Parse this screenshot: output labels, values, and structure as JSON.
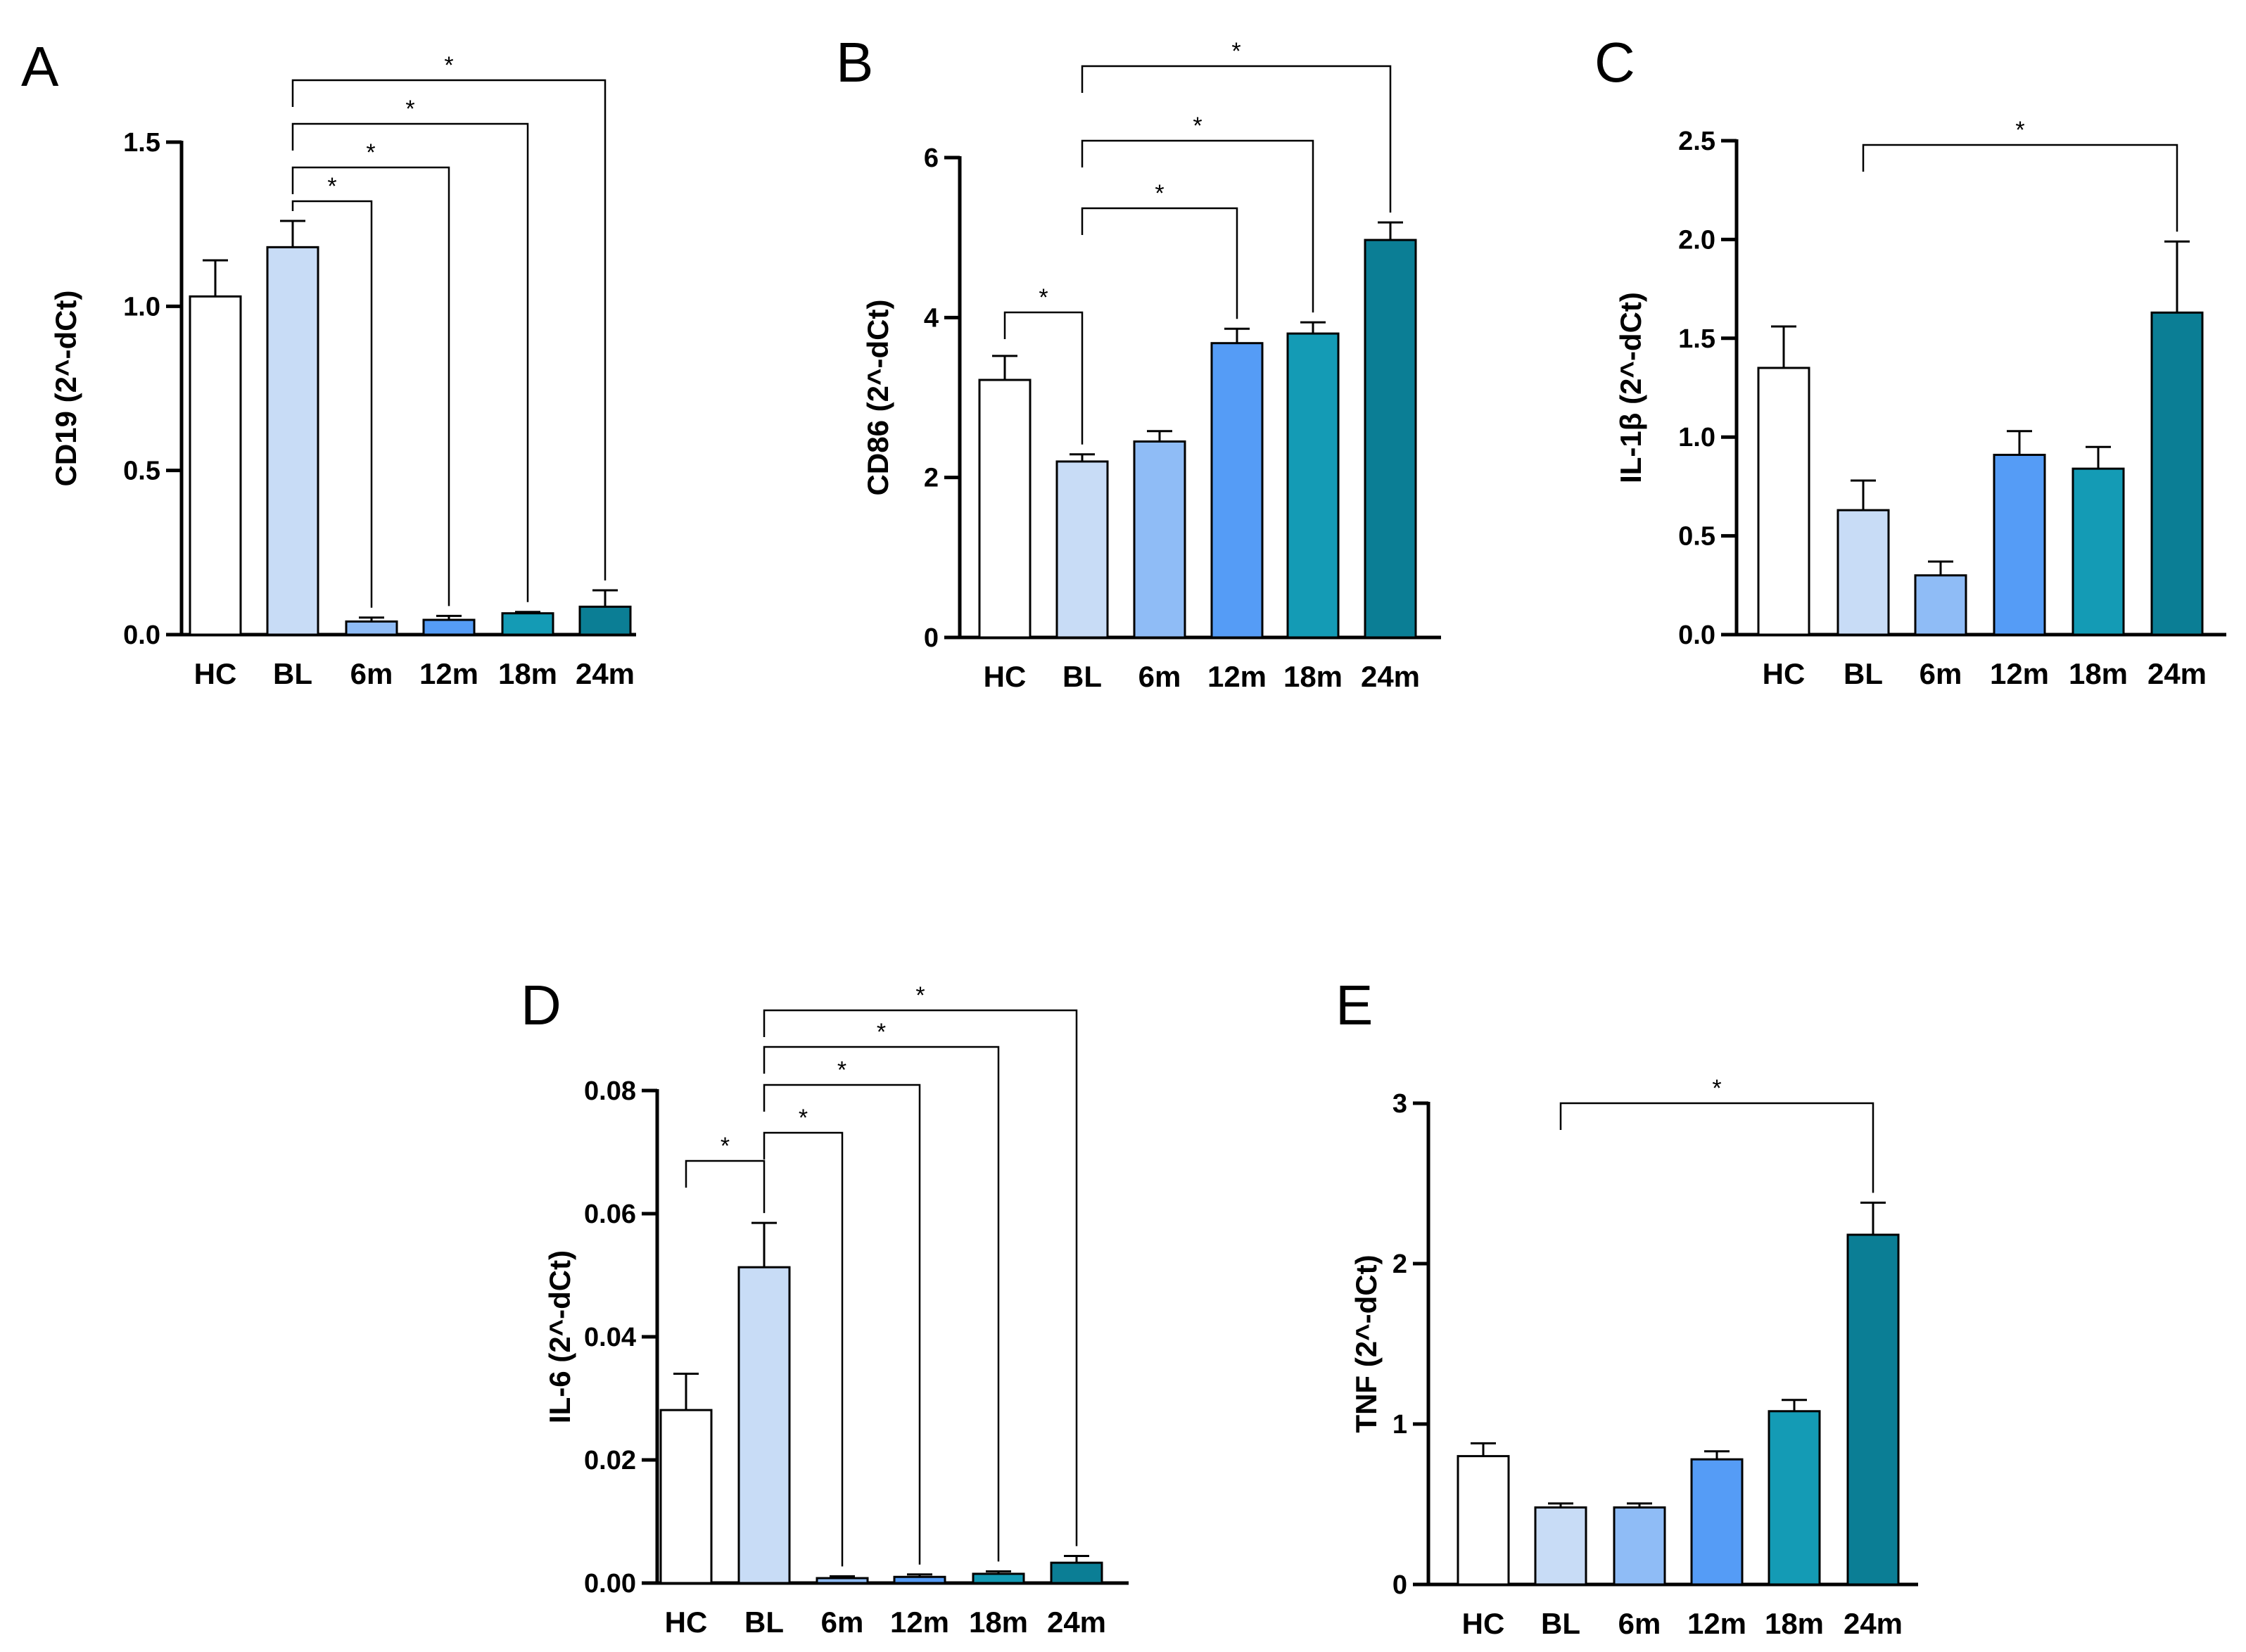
{
  "colors": {
    "HC": "#ffffff",
    "BL": "#c8dcf6",
    "6m": "#8fbcf6",
    "12m": "#559cf6",
    "18m": "#149bb5",
    "24m": "#0b7e95",
    "ink": "#000000"
  },
  "chart_data": [
    {
      "type": "bar",
      "panel": "A",
      "ylabel": "CD19 (2^-dCt)",
      "categories": [
        "HC",
        "BL",
        "6m",
        "12m",
        "18m",
        "24m"
      ],
      "values": [
        1.03,
        1.18,
        0.04,
        0.045,
        0.065,
        0.085
      ],
      "errors": [
        0.11,
        0.08,
        0.012,
        0.012,
        0.004,
        0.05
      ],
      "ylim": [
        0,
        1.5
      ],
      "yticks": [
        0.0,
        0.5,
        1.0,
        1.5
      ],
      "ytick_labels": [
        "0.0",
        "0.5",
        "1.0",
        "1.5"
      ],
      "significance": [
        {
          "from": "BL",
          "to": "6m",
          "label": "*"
        },
        {
          "from": "BL",
          "to": "12m",
          "label": "*"
        },
        {
          "from": "BL",
          "to": "18m",
          "label": "*"
        },
        {
          "from": "BL",
          "to": "24m",
          "label": "*"
        }
      ]
    },
    {
      "type": "bar",
      "panel": "B",
      "ylabel": "CD86 (2^-dCt)",
      "categories": [
        "HC",
        "BL",
        "6m",
        "12m",
        "18m",
        "24m"
      ],
      "values": [
        3.22,
        2.2,
        2.45,
        3.68,
        3.8,
        4.97
      ],
      "errors": [
        0.3,
        0.09,
        0.13,
        0.18,
        0.14,
        0.22
      ],
      "ylim": [
        0,
        6
      ],
      "yticks": [
        0,
        2,
        4,
        6
      ],
      "ytick_labels": [
        "0",
        "2",
        "4",
        "6"
      ],
      "significance": [
        {
          "from": "HC",
          "to": "BL",
          "label": "*"
        },
        {
          "from": "BL",
          "to": "12m",
          "label": "*"
        },
        {
          "from": "BL",
          "to": "18m",
          "label": "*"
        },
        {
          "from": "BL",
          "to": "24m",
          "label": "*"
        }
      ]
    },
    {
      "type": "bar",
      "panel": "C",
      "ylabel": "IL-1β (2^-dCt)",
      "categories": [
        "HC",
        "BL",
        "6m",
        "12m",
        "18m",
        "24m"
      ],
      "values": [
        1.35,
        0.63,
        0.3,
        0.91,
        0.84,
        1.63
      ],
      "errors": [
        0.21,
        0.15,
        0.07,
        0.12,
        0.11,
        0.36
      ],
      "ylim": [
        0,
        2.5
      ],
      "yticks": [
        0.0,
        0.5,
        1.0,
        1.5,
        2.0,
        2.5
      ],
      "ytick_labels": [
        "0.0",
        "0.5",
        "1.0",
        "1.5",
        "2.0",
        "2.5"
      ],
      "significance": [
        {
          "from": "BL",
          "to": "24m",
          "label": "*"
        }
      ]
    },
    {
      "type": "bar",
      "panel": "D",
      "ylabel": "IL-6 (2^-dCt)",
      "categories": [
        "HC",
        "BL",
        "6m",
        "12m",
        "18m",
        "24m"
      ],
      "values": [
        0.0281,
        0.0513,
        0.0008,
        0.001,
        0.0015,
        0.0033
      ],
      "errors": [
        0.0059,
        0.0072,
        0.0003,
        0.0004,
        0.0004,
        0.0011
      ],
      "ylim": [
        0,
        0.08
      ],
      "yticks": [
        0.0,
        0.02,
        0.04,
        0.06,
        0.08
      ],
      "ytick_labels": [
        "0.00",
        "0.02",
        "0.04",
        "0.06",
        "0.08"
      ],
      "significance": [
        {
          "from": "HC",
          "to": "BL",
          "label": "*"
        },
        {
          "from": "BL",
          "to": "6m",
          "label": "*"
        },
        {
          "from": "BL",
          "to": "12m",
          "label": "*"
        },
        {
          "from": "BL",
          "to": "18m",
          "label": "*"
        },
        {
          "from": "BL",
          "to": "24m",
          "label": "*"
        }
      ]
    },
    {
      "type": "bar",
      "panel": "E",
      "ylabel": "TNF (2^-dCt)",
      "categories": [
        "HC",
        "BL",
        "6m",
        "12m",
        "18m",
        "24m"
      ],
      "values": [
        0.8,
        0.48,
        0.48,
        0.78,
        1.08,
        2.18
      ],
      "errors": [
        0.08,
        0.025,
        0.025,
        0.05,
        0.07,
        0.2
      ],
      "ylim": [
        0,
        3
      ],
      "yticks": [
        0,
        1,
        2,
        3
      ],
      "ytick_labels": [
        "0",
        "1",
        "2",
        "3"
      ],
      "significance": [
        {
          "from": "BL",
          "to": "24m",
          "label": "*"
        }
      ]
    }
  ]
}
